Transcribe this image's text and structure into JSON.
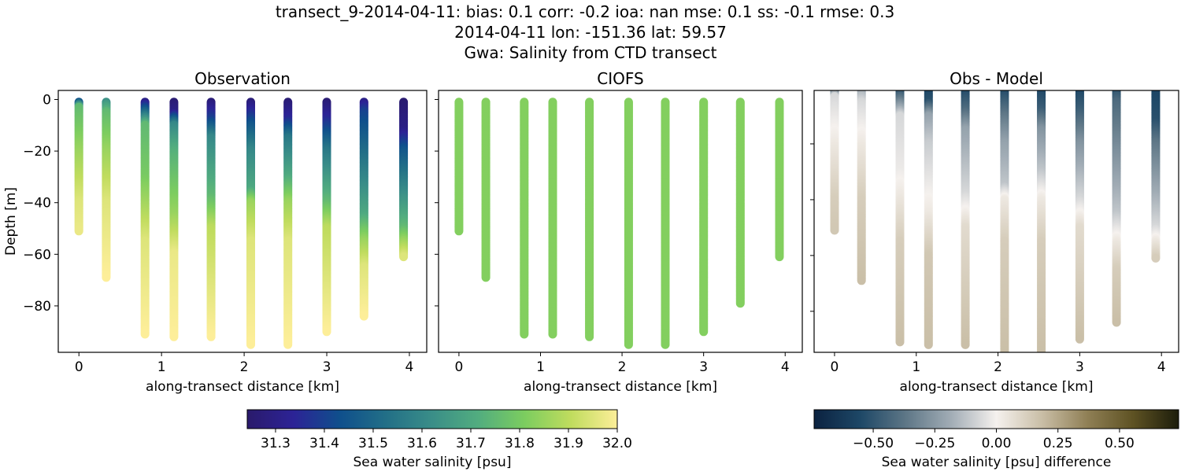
{
  "chart_data": {
    "type": "scatter",
    "title_lines": [
      "transect_9-2014-04-11: bias: 0.1  corr: -0.2  ioa: nan  mse: 0.1  ss: -0.1  rmse: 0.3",
      "2014-04-11 lon: -151.36 lat: 59.57",
      "Gwa: Salinity from CTD transect"
    ],
    "xlabel": "along-transect distance [km]",
    "ylabel": "Depth [m]",
    "xlim": [
      -0.25,
      4.21
    ],
    "xticks": [
      0,
      1,
      2,
      3,
      4
    ],
    "xtick_labels": [
      "0",
      "1",
      "2",
      "3",
      "4"
    ],
    "panels": [
      {
        "title": "Observation",
        "source": "obs",
        "ylim": [
          -98,
          3.5
        ],
        "yticks": [
          0,
          -20,
          -40,
          -60,
          -80
        ],
        "ytick_labels": [
          "0",
          "−20",
          "−40",
          "−60",
          "−80"
        ],
        "show_ylabels": true
      },
      {
        "title": "CIOFS",
        "source": "model",
        "ylim": [
          -98,
          3.5
        ],
        "yticks": [
          0,
          -20,
          -40,
          -60,
          -80
        ],
        "ytick_labels": [
          "",
          "",
          "",
          "",
          ""
        ],
        "show_ylabels": false
      },
      {
        "title": "Obs - Model",
        "source": "diff",
        "ylim": [
          -94.7,
          -0.85
        ],
        "yticks": [
          -20,
          -40,
          -60,
          -80
        ],
        "ytick_labels": [
          "",
          "",
          "",
          ""
        ],
        "show_ylabels": false
      }
    ],
    "stations": [
      {
        "x": 0.0,
        "bottom": -51,
        "model_bottom": -51,
        "obs": [
          [
            0,
            31.3
          ],
          [
            -3,
            31.75
          ],
          [
            -20,
            31.85
          ],
          [
            -40,
            31.95
          ],
          [
            -51,
            31.97
          ]
        ]
      },
      {
        "x": 0.33,
        "bottom": -69,
        "model_bottom": -69,
        "obs": [
          [
            0,
            31.6
          ],
          [
            -5,
            31.75
          ],
          [
            -20,
            31.85
          ],
          [
            -40,
            31.95
          ],
          [
            -69,
            32.0
          ]
        ]
      },
      {
        "x": 0.8,
        "bottom": -91,
        "model_bottom": -91,
        "obs": [
          [
            0,
            31.25
          ],
          [
            -5,
            31.5
          ],
          [
            -10,
            31.75
          ],
          [
            -30,
            31.8
          ],
          [
            -55,
            31.95
          ],
          [
            -91,
            32.0
          ]
        ]
      },
      {
        "x": 1.15,
        "bottom": -92,
        "model_bottom": -91,
        "obs": [
          [
            0,
            31.25
          ],
          [
            -5,
            31.3
          ],
          [
            -10,
            31.6
          ],
          [
            -20,
            31.72
          ],
          [
            -45,
            31.85
          ],
          [
            -60,
            31.97
          ],
          [
            -92,
            32.0
          ]
        ]
      },
      {
        "x": 1.6,
        "bottom": -92,
        "model_bottom": -92,
        "obs": [
          [
            0,
            31.25
          ],
          [
            -8,
            31.4
          ],
          [
            -15,
            31.6
          ],
          [
            -38,
            31.75
          ],
          [
            -50,
            31.9
          ],
          [
            -92,
            32.0
          ]
        ]
      },
      {
        "x": 2.08,
        "bottom": -95,
        "model_bottom": -95,
        "obs": [
          [
            0,
            31.25
          ],
          [
            -10,
            31.45
          ],
          [
            -20,
            31.6
          ],
          [
            -35,
            31.7
          ],
          [
            -40,
            31.85
          ],
          [
            -55,
            31.95
          ],
          [
            -95,
            32.0
          ]
        ]
      },
      {
        "x": 2.53,
        "bottom": -95,
        "model_bottom": -95,
        "obs": [
          [
            0,
            31.25
          ],
          [
            -8,
            31.35
          ],
          [
            -15,
            31.55
          ],
          [
            -30,
            31.7
          ],
          [
            -40,
            31.85
          ],
          [
            -55,
            31.95
          ],
          [
            -95,
            32.0
          ]
        ]
      },
      {
        "x": 3.0,
        "bottom": -90,
        "model_bottom": -90,
        "obs": [
          [
            0,
            31.25
          ],
          [
            -8,
            31.35
          ],
          [
            -20,
            31.55
          ],
          [
            -40,
            31.75
          ],
          [
            -50,
            31.9
          ],
          [
            -90,
            32.0
          ]
        ]
      },
      {
        "x": 3.45,
        "bottom": -84,
        "model_bottom": -79,
        "obs": [
          [
            0,
            31.28
          ],
          [
            -5,
            31.4
          ],
          [
            -25,
            31.55
          ],
          [
            -45,
            31.7
          ],
          [
            -55,
            31.85
          ],
          [
            -65,
            31.95
          ],
          [
            -84,
            32.0
          ]
        ]
      },
      {
        "x": 3.93,
        "bottom": -61,
        "model_bottom": -61,
        "obs": [
          [
            0,
            31.25
          ],
          [
            -12,
            31.3
          ],
          [
            -20,
            31.45
          ],
          [
            -40,
            31.65
          ],
          [
            -50,
            31.75
          ],
          [
            -55,
            31.85
          ],
          [
            -61,
            31.95
          ]
        ]
      }
    ],
    "model_value": 31.82,
    "colorbars": [
      {
        "label": "Sea water salinity [psu]",
        "range": [
          31.242,
          32.0
        ],
        "ticks": [
          31.3,
          31.4,
          31.5,
          31.6,
          31.7,
          31.8,
          31.9,
          32.0
        ],
        "tick_labels": [
          "31.3",
          "31.4",
          "31.5",
          "31.6",
          "31.7",
          "31.8",
          "31.9",
          "32.0"
        ],
        "colormap": [
          "#2a1a6b",
          "#2c2396",
          "#0f4f8c",
          "#226f87",
          "#3a8e88",
          "#52ad7f",
          "#7ccd5f",
          "#c0dc5e",
          "#fdee99"
        ]
      },
      {
        "label": "Sea water salinity [psu] difference",
        "range": [
          -0.74,
          0.74
        ],
        "ticks": [
          -0.5,
          -0.25,
          0,
          0.25,
          0.5
        ],
        "tick_labels": [
          "−0.50",
          "−0.25",
          "0.00",
          "0.25",
          "0.50"
        ],
        "colormap": [
          "#0b2240",
          "#1d4766",
          "#5d7686",
          "#a1acb5",
          "#f5f1ee",
          "#c9bea6",
          "#8f7f55",
          "#5e5223",
          "#1c1d0b"
        ]
      }
    ]
  }
}
